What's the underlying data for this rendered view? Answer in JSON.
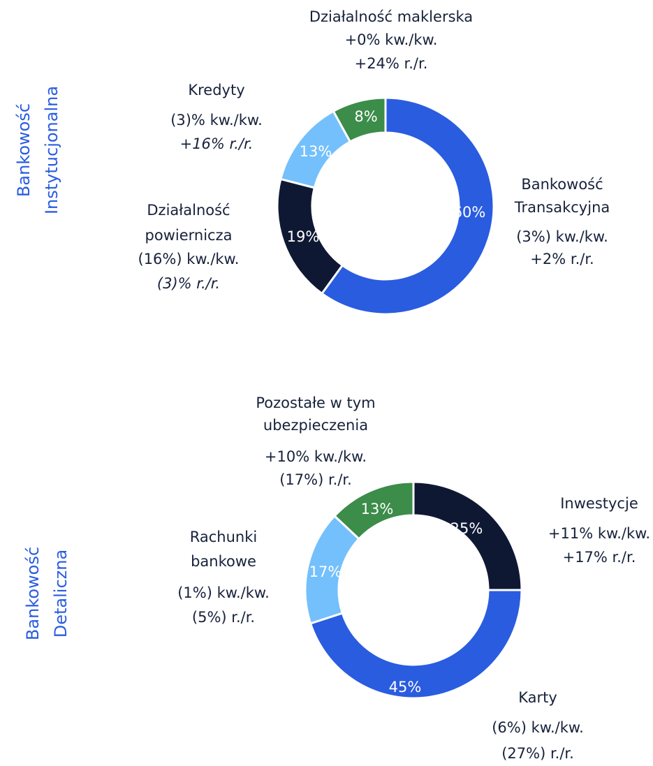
{
  "chart_data": [
    {
      "type": "pie",
      "title": [
        "Bankowość",
        "Instytucjonalna"
      ],
      "categories": [
        [
          "Bankowość",
          "Transakcyjna"
        ],
        [
          "Działalność",
          "powiernicza"
        ],
        [
          "Kredyty"
        ],
        [
          "Działalność maklerska"
        ]
      ],
      "values": [
        60,
        19,
        13,
        8
      ],
      "value_labels": [
        "60%",
        "19%",
        "13%",
        "8%"
      ],
      "qoq": [
        "(3%) kw./kw.",
        "(16%) kw./kw.",
        "(3)% kw./kw.",
        "+0% kw./kw."
      ],
      "yoy": [
        "+2% r./r.",
        "(3)% r./r.",
        "+16% r./r.",
        "+24% r./r."
      ],
      "colors": [
        "#2a5ce0",
        "#0f1833",
        "#74c0fc",
        "#3c8c4a"
      ]
    },
    {
      "type": "pie",
      "title": [
        "Bankowość",
        "Detaliczna"
      ],
      "categories": [
        [
          "Inwestycje"
        ],
        [
          "Karty"
        ],
        [
          "Rachunki",
          "bankowe"
        ],
        [
          "Pozostałe w tym",
          "ubezpieczenia"
        ]
      ],
      "values": [
        25,
        45,
        17,
        13
      ],
      "value_labels": [
        "25%",
        "45%",
        "17%",
        "13%"
      ],
      "qoq": [
        "+11% kw./kw.",
        "(6%) kw./kw.",
        "(1%) kw./kw.",
        "+10% kw./kw."
      ],
      "yoy": [
        "+17% r./r.",
        "(27%) r./r.",
        "(5%) r./r.",
        "(17%) r./r."
      ],
      "colors": [
        "#0f1833",
        "#2a5ce0",
        "#74c0fc",
        "#3c8c4a"
      ]
    }
  ]
}
